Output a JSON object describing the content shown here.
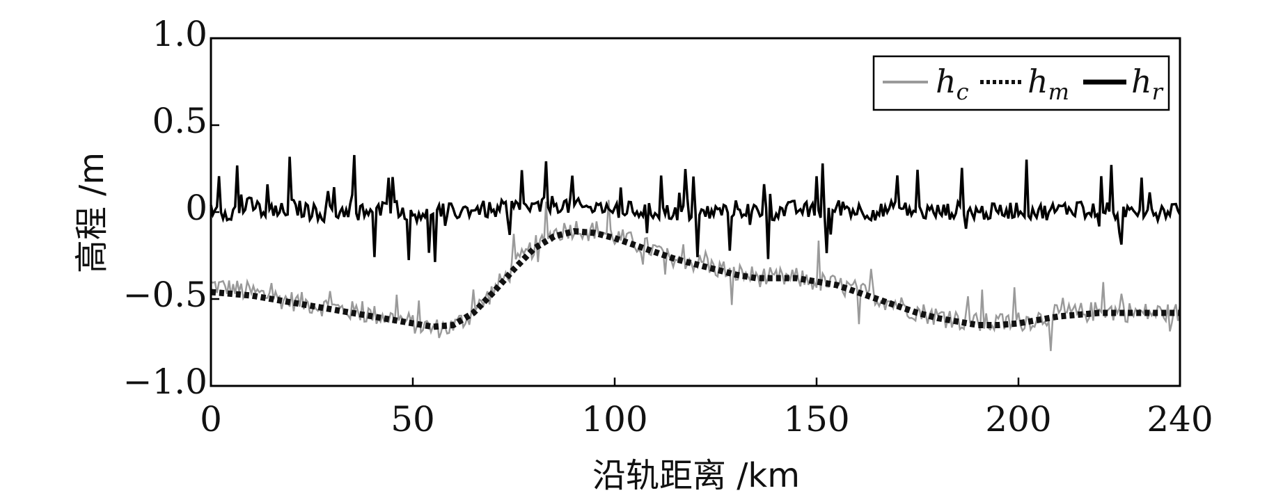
{
  "chart_data": {
    "type": "line",
    "xlabel": "沿轨距离 /km",
    "ylabel": "高程 /m",
    "xlim": [
      0,
      240
    ],
    "ylim": [
      -1.0,
      1.0
    ],
    "x_ticks": [
      "0",
      "50",
      "100",
      "150",
      "200",
      "240"
    ],
    "y_ticks": [
      "1.0",
      "0.5",
      "0",
      "−0.5",
      "−1.0"
    ],
    "legend_position": "top-right",
    "grid": false,
    "colors": {
      "h_c": "#9a9a9a",
      "h_m": "#111111",
      "h_r": "#000000"
    },
    "series": [
      {
        "name": "h_c",
        "legend_main": "h",
        "legend_sub": "c",
        "style": "thin-gray-noisy",
        "x": [
          0,
          5,
          10,
          15,
          20,
          25,
          30,
          35,
          40,
          45,
          50,
          55,
          60,
          65,
          70,
          75,
          80,
          85,
          90,
          95,
          100,
          105,
          110,
          115,
          120,
          125,
          130,
          135,
          140,
          145,
          150,
          155,
          160,
          165,
          170,
          175,
          180,
          185,
          190,
          195,
          200,
          205,
          210,
          215,
          220,
          225,
          230,
          235,
          240
        ],
        "values": [
          -0.42,
          -0.44,
          -0.46,
          -0.49,
          -0.51,
          -0.53,
          -0.55,
          -0.57,
          -0.59,
          -0.61,
          -0.64,
          -0.67,
          -0.66,
          -0.58,
          -0.45,
          -0.32,
          -0.2,
          -0.12,
          -0.09,
          -0.1,
          -0.14,
          -0.18,
          -0.22,
          -0.26,
          -0.29,
          -0.32,
          -0.35,
          -0.37,
          -0.38,
          -0.38,
          -0.4,
          -0.42,
          -0.45,
          -0.49,
          -0.53,
          -0.57,
          -0.6,
          -0.62,
          -0.64,
          -0.64,
          -0.63,
          -0.61,
          -0.59,
          -0.58,
          -0.57,
          -0.57,
          -0.58,
          -0.58,
          -0.58
        ]
      },
      {
        "name": "h_m",
        "legend_main": "h",
        "legend_sub": "m",
        "style": "thick-dotted",
        "x": [
          0,
          5,
          10,
          15,
          20,
          25,
          30,
          35,
          40,
          45,
          50,
          55,
          60,
          65,
          70,
          75,
          80,
          85,
          90,
          95,
          100,
          105,
          110,
          115,
          120,
          125,
          130,
          135,
          140,
          145,
          150,
          155,
          160,
          165,
          170,
          175,
          180,
          185,
          190,
          195,
          200,
          205,
          210,
          215,
          220,
          225,
          230,
          235,
          240
        ],
        "values": [
          -0.46,
          -0.47,
          -0.48,
          -0.5,
          -0.52,
          -0.54,
          -0.56,
          -0.58,
          -0.6,
          -0.62,
          -0.64,
          -0.66,
          -0.65,
          -0.58,
          -0.46,
          -0.33,
          -0.21,
          -0.14,
          -0.11,
          -0.12,
          -0.15,
          -0.19,
          -0.23,
          -0.27,
          -0.3,
          -0.33,
          -0.36,
          -0.38,
          -0.38,
          -0.38,
          -0.4,
          -0.42,
          -0.46,
          -0.5,
          -0.54,
          -0.58,
          -0.61,
          -0.63,
          -0.65,
          -0.65,
          -0.64,
          -0.62,
          -0.6,
          -0.59,
          -0.58,
          -0.58,
          -0.58,
          -0.58,
          -0.58
        ]
      },
      {
        "name": "h_r",
        "legend_main": "h",
        "legend_sub": "r",
        "style": "thick-solid-noisy",
        "x": [
          0,
          5,
          10,
          15,
          20,
          25,
          30,
          35,
          40,
          45,
          50,
          55,
          60,
          65,
          70,
          75,
          80,
          85,
          90,
          95,
          100,
          105,
          110,
          115,
          120,
          125,
          130,
          135,
          140,
          145,
          150,
          155,
          160,
          165,
          170,
          175,
          180,
          185,
          190,
          195,
          200,
          205,
          210,
          215,
          220,
          225,
          230,
          235,
          240
        ],
        "values": [
          0.02,
          0.0,
          0.04,
          -0.02,
          0.03,
          0.0,
          -0.01,
          0.02,
          0.0,
          0.03,
          -0.01,
          0.01,
          0.0,
          0.02,
          0.01,
          0.03,
          0.02,
          0.05,
          0.03,
          0.02,
          0.02,
          0.01,
          0.0,
          0.0,
          -0.01,
          0.0,
          0.02,
          0.01,
          0.0,
          0.02,
          0.0,
          0.03,
          0.01,
          0.0,
          0.02,
          0.0,
          0.0,
          0.01,
          0.0,
          0.0,
          0.02,
          0.0,
          0.01,
          0.03,
          0.01,
          0.0,
          0.02,
          0.0,
          0.03
        ]
      }
    ]
  }
}
